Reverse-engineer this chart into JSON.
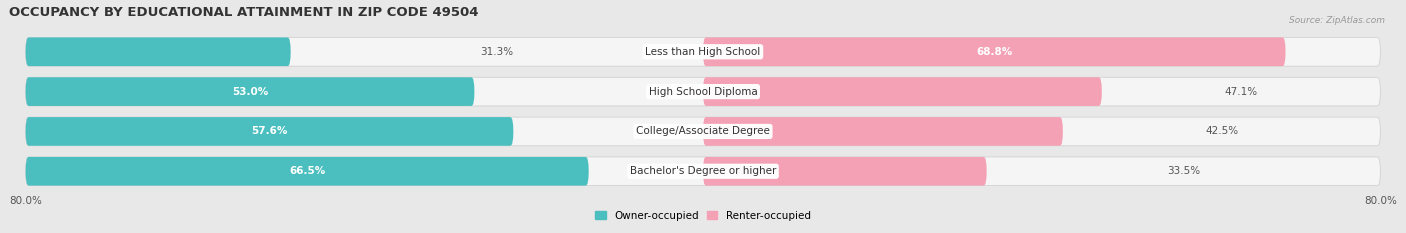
{
  "title": "OCCUPANCY BY EDUCATIONAL ATTAINMENT IN ZIP CODE 49504",
  "source": "Source: ZipAtlas.com",
  "categories": [
    "Less than High School",
    "High School Diploma",
    "College/Associate Degree",
    "Bachelor's Degree or higher"
  ],
  "owner_values": [
    31.3,
    53.0,
    57.6,
    66.5
  ],
  "renter_values": [
    68.8,
    47.1,
    42.5,
    33.5
  ],
  "owner_color": "#4bbfbf",
  "renter_color": "#f4a0b5",
  "background_color": "#e8e8e8",
  "bar_bg_color": "#f5f5f5",
  "xlim_left": -80.0,
  "xlim_right": 80.0,
  "legend_owner": "Owner-occupied",
  "legend_renter": "Renter-occupied",
  "title_fontsize": 9.5,
  "value_fontsize": 7.5,
  "cat_fontsize": 7.5,
  "bar_height": 0.72,
  "total_range": 160.0,
  "owner_label_inside": [
    false,
    true,
    true,
    true
  ],
  "renter_label_inside": [
    true,
    false,
    false,
    false
  ]
}
